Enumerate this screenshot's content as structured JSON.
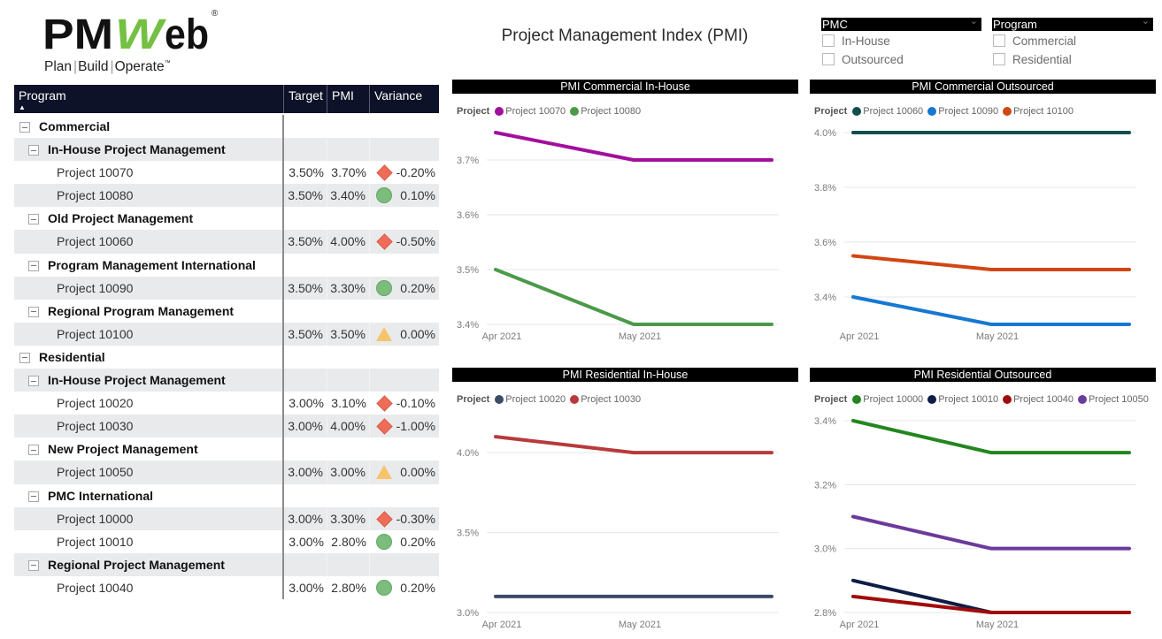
{
  "logo": {
    "brand_prefix": "PM",
    "brand_w": "W",
    "brand_suffix": "eb",
    "registered": "®",
    "tagline": [
      "Plan",
      "Build",
      "Operate"
    ],
    "tagline_separator": "|",
    "trademark": "™"
  },
  "page_title": "Project Management Index (PMI)",
  "slicers": [
    {
      "label": "PMC",
      "options": [
        "In-House",
        "Outsourced"
      ]
    },
    {
      "label": "Program",
      "options": [
        "Commercial",
        "Residential"
      ]
    }
  ],
  "table": {
    "columns": [
      "Program",
      "Target",
      "PMI",
      "Variance"
    ],
    "sort": "ascending",
    "rows": [
      {
        "level": 0,
        "label": "Commercial"
      },
      {
        "level": 1,
        "label": "In-House Project Management"
      },
      {
        "level": 2,
        "label": "Project 10070",
        "target": "3.50%",
        "pmi": "3.70%",
        "status": "diamond",
        "variance": "-0.20%"
      },
      {
        "level": 2,
        "label": "Project 10080",
        "target": "3.50%",
        "pmi": "3.40%",
        "status": "circle",
        "variance": "0.10%"
      },
      {
        "level": 1,
        "label": "Old Project Management"
      },
      {
        "level": 2,
        "label": "Project 10060",
        "target": "3.50%",
        "pmi": "4.00%",
        "status": "diamond",
        "variance": "-0.50%"
      },
      {
        "level": 1,
        "label": "Program Management International"
      },
      {
        "level": 2,
        "label": "Project 10090",
        "target": "3.50%",
        "pmi": "3.30%",
        "status": "circle",
        "variance": "0.20%"
      },
      {
        "level": 1,
        "label": "Regional Program Management"
      },
      {
        "level": 2,
        "label": "Project 10100",
        "target": "3.50%",
        "pmi": "3.50%",
        "status": "triangle",
        "variance": "0.00%"
      },
      {
        "level": 0,
        "label": "Residential"
      },
      {
        "level": 1,
        "label": "In-House Project Management"
      },
      {
        "level": 2,
        "label": "Project 10020",
        "target": "3.00%",
        "pmi": "3.10%",
        "status": "diamond",
        "variance": "-0.10%"
      },
      {
        "level": 2,
        "label": "Project 10030",
        "target": "3.00%",
        "pmi": "4.00%",
        "status": "diamond",
        "variance": "-1.00%"
      },
      {
        "level": 1,
        "label": "New Project Management"
      },
      {
        "level": 2,
        "label": "Project 10050",
        "target": "3.00%",
        "pmi": "3.00%",
        "status": "triangle",
        "variance": "0.00%"
      },
      {
        "level": 1,
        "label": "PMC International"
      },
      {
        "level": 2,
        "label": "Project 10000",
        "target": "3.00%",
        "pmi": "3.30%",
        "status": "diamond",
        "variance": "-0.30%"
      },
      {
        "level": 2,
        "label": "Project 10010",
        "target": "3.00%",
        "pmi": "2.80%",
        "status": "circle",
        "variance": "0.20%"
      },
      {
        "level": 1,
        "label": "Regional Project Management"
      },
      {
        "level": 2,
        "label": "Project 10040",
        "target": "3.00%",
        "pmi": "2.80%",
        "status": "circle",
        "variance": "0.20%"
      }
    ]
  },
  "status_colors": {
    "diamond": "#ef6c58",
    "circle": "#7cbd7d",
    "triangle": "#f7c46b"
  },
  "chart_data": [
    {
      "type": "line",
      "title": "PMI Commercial In-House",
      "legend_title": "Project",
      "legend_position": "top-left",
      "x": [
        "Apr 2021",
        "May 2021",
        ""
      ],
      "ylim": [
        3.4,
        3.75
      ],
      "yticks": [
        3.4,
        3.5,
        3.6,
        3.7
      ],
      "y_format": "percent",
      "grid": true,
      "series": [
        {
          "name": "Project 10070",
          "color": "#a30f9d",
          "values": [
            3.75,
            3.7,
            3.7
          ]
        },
        {
          "name": "Project 10080",
          "color": "#4b9a48",
          "values": [
            3.5,
            3.4,
            3.4
          ]
        }
      ]
    },
    {
      "type": "line",
      "title": "PMI Commercial Outsourced",
      "legend_title": "Project",
      "legend_position": "top-left",
      "x": [
        "Apr 2021",
        "May 2021",
        ""
      ],
      "ylim": [
        3.3,
        4.0
      ],
      "yticks": [
        3.4,
        3.6,
        3.8,
        4.0
      ],
      "y_format": "percent",
      "grid": true,
      "series": [
        {
          "name": "Project 10060",
          "color": "#114f4c",
          "values": [
            4.0,
            4.0,
            4.0
          ]
        },
        {
          "name": "Project 10090",
          "color": "#1678d2",
          "values": [
            3.4,
            3.3,
            3.3
          ]
        },
        {
          "name": "Project 10100",
          "color": "#d14612",
          "values": [
            3.55,
            3.5,
            3.5
          ]
        }
      ]
    },
    {
      "type": "line",
      "title": "PMI Residential In-House",
      "legend_title": "Project",
      "legend_position": "top-left",
      "x": [
        "Apr 2021",
        "May 2021",
        ""
      ],
      "ylim": [
        3.0,
        4.2
      ],
      "yticks": [
        3.0,
        3.5,
        4.0
      ],
      "y_format": "percent",
      "grid": true,
      "series": [
        {
          "name": "Project 10020",
          "color": "#3b4b68",
          "values": [
            3.1,
            3.1,
            3.1
          ]
        },
        {
          "name": "Project 10030",
          "color": "#b73a3c",
          "values": [
            4.1,
            4.0,
            4.0
          ]
        }
      ]
    },
    {
      "type": "line",
      "title": "PMI Residential Outsourced",
      "legend_title": "Project",
      "legend_position": "top-left",
      "x": [
        "Apr 2021",
        "May 2021",
        ""
      ],
      "ylim": [
        2.8,
        3.4
      ],
      "yticks": [
        2.8,
        3.0,
        3.2,
        3.4
      ],
      "y_format": "percent",
      "grid": true,
      "series": [
        {
          "name": "Project 10000",
          "color": "#23861f",
          "values": [
            3.4,
            3.3,
            3.3
          ]
        },
        {
          "name": "Project 10010",
          "color": "#0e1d45",
          "values": [
            2.9,
            2.8,
            2.8
          ]
        },
        {
          "name": "Project 10040",
          "color": "#a10b0b",
          "values": [
            2.85,
            2.8,
            2.8
          ]
        },
        {
          "name": "Project 10050",
          "color": "#6b3a9c",
          "values": [
            3.1,
            3.0,
            3.0
          ]
        }
      ]
    }
  ]
}
